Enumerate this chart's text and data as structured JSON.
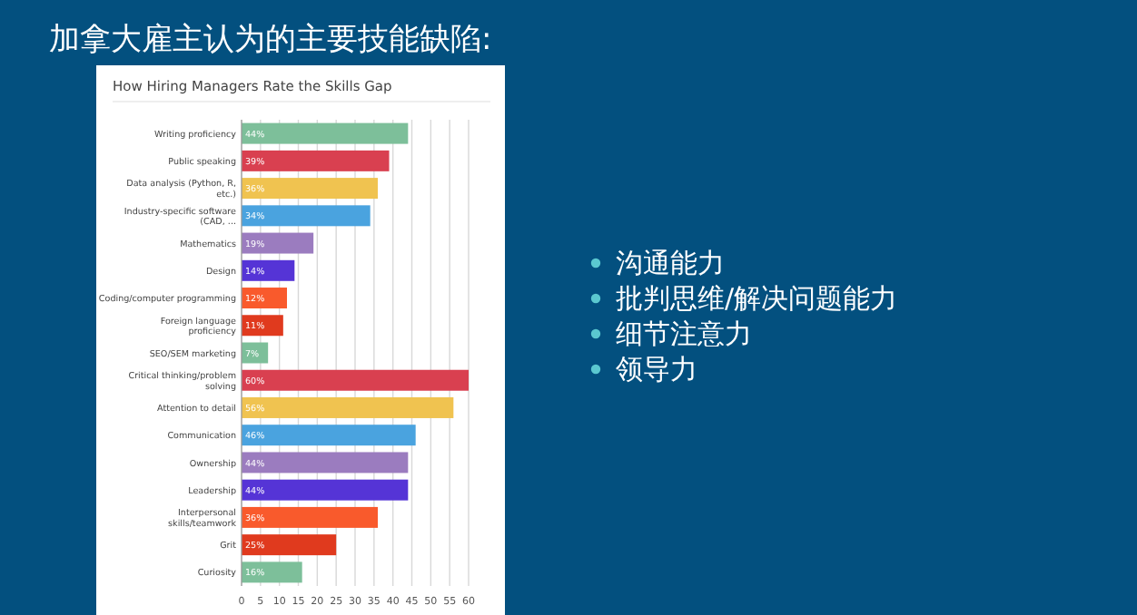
{
  "chart_data": {
    "type": "bar",
    "orientation": "horizontal",
    "title": "加拿大雇主认为的主要技能缺陷:",
    "subtitle": "How Hiring Managers Rate the Skills Gap",
    "categories": [
      "Writing proficiency",
      "Public speaking",
      "Data analysis (Python, R, etc.)",
      "Industry-specific software (CAD, ...",
      "Mathematics",
      "Design",
      "Coding/computer programming",
      "Foreign language proficiency",
      "SEO/SEM marketing",
      "Critical thinking/problem solving",
      "Attention to detail",
      "Communication",
      "Ownership",
      "Leadership",
      "Interpersonal skills/teamwork",
      "Grit",
      "Curiosity"
    ],
    "values": [
      44,
      39,
      36,
      34,
      19,
      14,
      12,
      11,
      7,
      60,
      56,
      46,
      44,
      44,
      36,
      25,
      16
    ],
    "value_labels": [
      "44%",
      "39%",
      "36%",
      "34%",
      "19%",
      "14%",
      "12%",
      "11%",
      "7%",
      "60%",
      "56%",
      "46%",
      "44%",
      "44%",
      "36%",
      "25%",
      "16%"
    ],
    "colors": [
      "#7dbf9a",
      "#d94050",
      "#f0c350",
      "#4aa3df",
      "#9b7cbf",
      "#5534d6",
      "#f95a2c",
      "#e03a1e",
      "#7dbf9a",
      "#d94050",
      "#f0c350",
      "#4aa3df",
      "#9b7cbf",
      "#5534d6",
      "#f95a2c",
      "#e03a1e",
      "#7dbf9a"
    ],
    "xlim": [
      0,
      60
    ],
    "xticks": [
      0,
      5,
      10,
      15,
      20,
      25,
      30,
      35,
      40,
      45,
      50,
      55,
      60
    ],
    "grid": "x",
    "annotations": [
      "沟通能力",
      "批判思维/解决问题能力",
      "细节注意力",
      "领导力"
    ]
  }
}
